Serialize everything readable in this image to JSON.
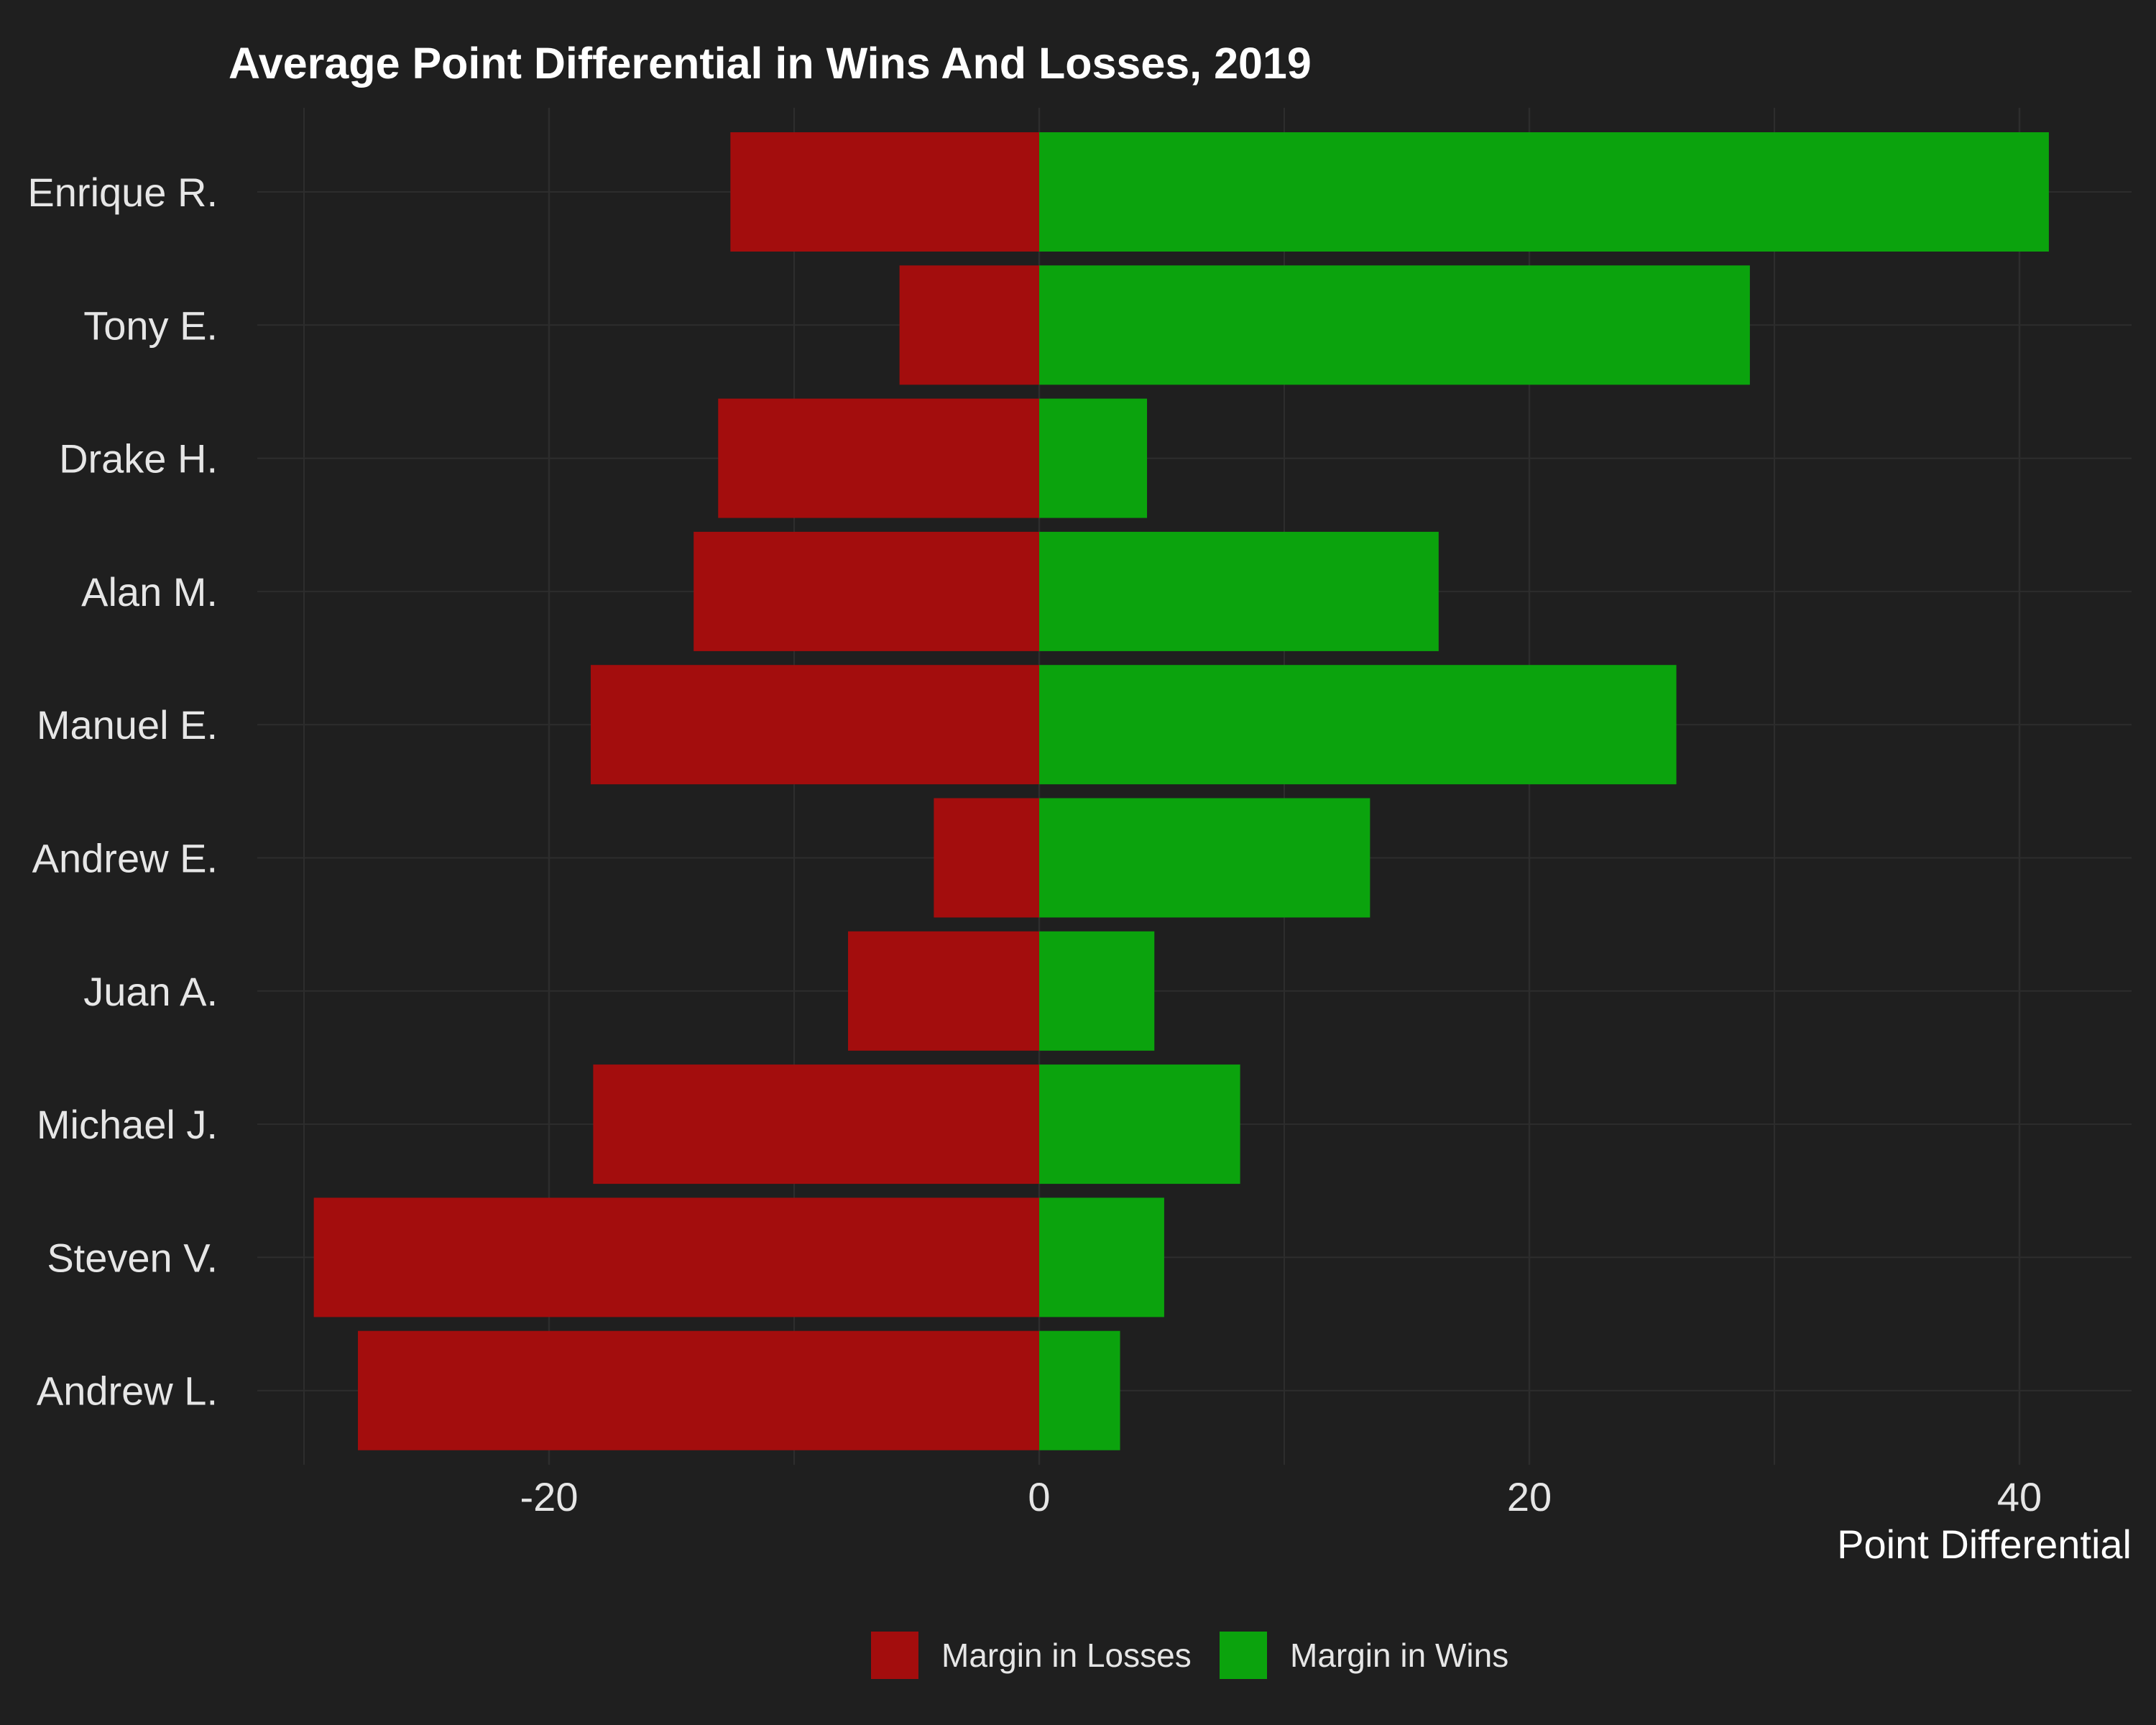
{
  "chart_data": {
    "type": "bar",
    "orientation": "horizontal",
    "stacked": "diverging",
    "title": "Average Point Differential in Wins And Losses, 2019",
    "xlabel": "Point Differential",
    "ylabel": "",
    "xlim": [
      -30,
      43
    ],
    "xticks": [
      -20,
      0,
      20,
      40
    ],
    "tick_labels": [
      "-20",
      "0",
      "20",
      "40"
    ],
    "grid": true,
    "legend_position": "bottom",
    "categories": [
      "Enrique R.",
      "Tony E.",
      "Drake H.",
      "Alan M.",
      "Manuel E.",
      "Andrew E.",
      "Juan A.",
      "Michael J.",
      "Steven V.",
      "Andrew L."
    ],
    "series": [
      {
        "name": "Margin in Losses",
        "color": "#a30d0d",
        "values": [
          -12.6,
          -5.7,
          -13.1,
          -14.1,
          -18.3,
          -4.3,
          -7.8,
          -18.2,
          -29.6,
          -27.8
        ]
      },
      {
        "name": "Margin in Wins",
        "color": "#0ba30d",
        "values": [
          41.2,
          29.0,
          4.4,
          16.3,
          26.0,
          13.5,
          4.7,
          8.2,
          5.1,
          3.3
        ]
      }
    ]
  },
  "colors": {
    "background": "#1f1f1f",
    "grid": "#2d2d2d",
    "text": "#e6e6e6",
    "title": "#ffffff"
  }
}
